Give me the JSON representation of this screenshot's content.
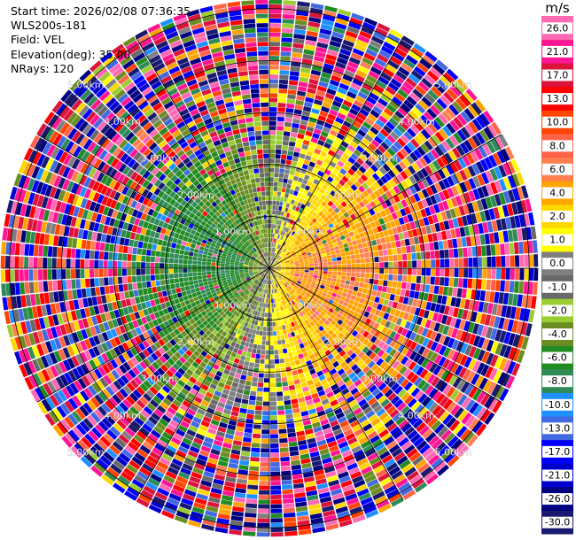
{
  "header": {
    "start_time": "Start time: 2026/02/08 07:36:35",
    "instrument": "WLS200s-181",
    "field": "Field: VEL",
    "elevation": "Elevation(deg): 35.00",
    "nrays": "NRays: 120"
  },
  "colorbar": {
    "unit": "m/s",
    "colors": [
      "#191970",
      "#000080",
      "#0000cd",
      "#0000ff",
      "#4169e1",
      "#1e90ff",
      "#2e8b57",
      "#228b22",
      "#6b8e23",
      "#9acd32",
      "#696969",
      "#808080",
      "#ffff00",
      "#ffd700",
      "#ffa500",
      "#ff7f50",
      "#ff6347",
      "#ff4500",
      "#ff0000",
      "#dc143c",
      "#ff1493",
      "#ff69b4"
    ],
    "tick_labels": [
      "-30.0",
      "-26.0",
      "-21.0",
      "-17.0",
      "-13.0",
      "-10.0",
      "-8.0",
      "-6.0",
      "-4.0",
      "-2.0",
      "-1.0",
      "0.0",
      "1.0",
      "2.0",
      "4.0",
      "6.0",
      "8.0",
      "10.0",
      "13.0",
      "17.0",
      "21.0",
      "26.0"
    ]
  },
  "chart_data": {
    "type": "heatmap",
    "title": "",
    "field": "VEL",
    "units": "m/s",
    "elevation_deg": 35.0,
    "n_rays": 120,
    "range_rings_km": [
      1.0,
      2.0,
      3.0,
      4.0,
      5.0
    ],
    "range_ring_labels": [
      "1.00km",
      "2.00km",
      "3.00km",
      "4.00km",
      "5.00km"
    ],
    "max_range_km": 5.15,
    "colorbar_boundaries": [
      -30,
      -26,
      -21,
      -17,
      -13,
      -10,
      -8,
      -6,
      -4,
      -2,
      -1,
      0,
      1,
      2,
      4,
      6,
      8,
      10,
      13,
      17,
      21,
      26,
      30
    ],
    "spokes_deg": [
      0,
      30,
      60,
      90,
      120,
      150,
      180,
      210,
      240,
      270,
      300,
      330
    ],
    "description_of_values": "Near field (<~2.2 km): negative velocities (-8 to -1 m/s, green/olive) to the west/north-west, positive (1 to 6 m/s, yellow/orange) to the east/south-east; beyond ~3 km: noisy random values over the full -30..30 m/s range."
  }
}
